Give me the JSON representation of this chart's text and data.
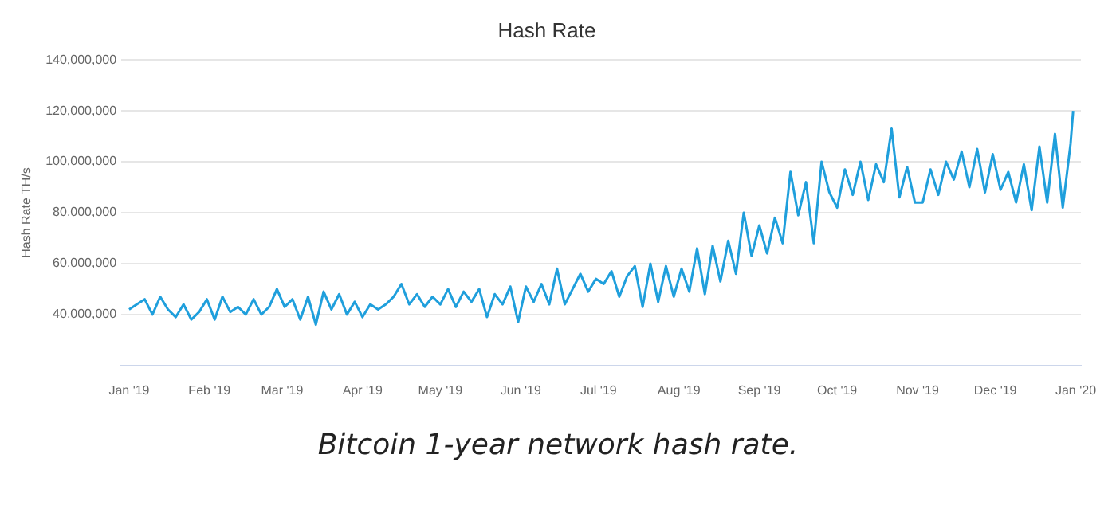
{
  "chart_data": {
    "type": "line",
    "title": "Hash Rate",
    "ylabel": "Hash Rate TH/s",
    "annotations": [
      "Bitcoin 1-year network hash rate."
    ],
    "x": [
      "2019-01-01",
      "2019-01-04",
      "2019-01-07",
      "2019-01-10",
      "2019-01-13",
      "2019-01-16",
      "2019-01-19",
      "2019-01-22",
      "2019-01-25",
      "2019-01-28",
      "2019-01-31",
      "2019-02-03",
      "2019-02-06",
      "2019-02-09",
      "2019-02-12",
      "2019-02-15",
      "2019-02-18",
      "2019-02-21",
      "2019-02-24",
      "2019-02-27",
      "2019-03-02",
      "2019-03-05",
      "2019-03-08",
      "2019-03-11",
      "2019-03-14",
      "2019-03-17",
      "2019-03-20",
      "2019-03-23",
      "2019-03-26",
      "2019-03-29",
      "2019-04-01",
      "2019-04-04",
      "2019-04-07",
      "2019-04-10",
      "2019-04-13",
      "2019-04-16",
      "2019-04-19",
      "2019-04-22",
      "2019-04-25",
      "2019-04-28",
      "2019-05-01",
      "2019-05-04",
      "2019-05-07",
      "2019-05-10",
      "2019-05-13",
      "2019-05-16",
      "2019-05-19",
      "2019-05-22",
      "2019-05-25",
      "2019-05-28",
      "2019-05-31",
      "2019-06-03",
      "2019-06-06",
      "2019-06-09",
      "2019-06-12",
      "2019-06-15",
      "2019-06-18",
      "2019-06-21",
      "2019-06-24",
      "2019-06-27",
      "2019-06-30",
      "2019-07-03",
      "2019-07-06",
      "2019-07-09",
      "2019-07-12",
      "2019-07-15",
      "2019-07-18",
      "2019-07-21",
      "2019-07-24",
      "2019-07-27",
      "2019-07-30",
      "2019-08-02",
      "2019-08-05",
      "2019-08-08",
      "2019-08-11",
      "2019-08-14",
      "2019-08-17",
      "2019-08-20",
      "2019-08-23",
      "2019-08-26",
      "2019-08-29",
      "2019-09-01",
      "2019-09-04",
      "2019-09-07",
      "2019-09-10",
      "2019-09-13",
      "2019-09-16",
      "2019-09-19",
      "2019-09-22",
      "2019-09-25",
      "2019-09-28",
      "2019-10-01",
      "2019-10-04",
      "2019-10-07",
      "2019-10-10",
      "2019-10-13",
      "2019-10-16",
      "2019-10-19",
      "2019-10-22",
      "2019-10-25",
      "2019-10-28",
      "2019-10-31",
      "2019-11-03",
      "2019-11-06",
      "2019-11-09",
      "2019-11-12",
      "2019-11-15",
      "2019-11-18",
      "2019-11-21",
      "2019-11-24",
      "2019-11-27",
      "2019-11-30",
      "2019-12-03",
      "2019-12-06",
      "2019-12-09",
      "2019-12-12",
      "2019-12-15",
      "2019-12-18",
      "2019-12-21",
      "2019-12-24",
      "2019-12-27",
      "2019-12-30",
      "2019-12-31"
    ],
    "series": [
      {
        "color": "#1f9fdc",
        "values": [
          42000000,
          44000000,
          46000000,
          40000000,
          47000000,
          42000000,
          39000000,
          44000000,
          38000000,
          41000000,
          46000000,
          38000000,
          47000000,
          41000000,
          43000000,
          40000000,
          46000000,
          40000000,
          43000000,
          50000000,
          43000000,
          46000000,
          38000000,
          47000000,
          36000000,
          49000000,
          42000000,
          48000000,
          40000000,
          45000000,
          39000000,
          44000000,
          42000000,
          44000000,
          47000000,
          52000000,
          44000000,
          48000000,
          43000000,
          47000000,
          44000000,
          50000000,
          43000000,
          49000000,
          45000000,
          50000000,
          39000000,
          48000000,
          44000000,
          51000000,
          37000000,
          51000000,
          45000000,
          52000000,
          44000000,
          58000000,
          44000000,
          50000000,
          56000000,
          49000000,
          54000000,
          52000000,
          57000000,
          47000000,
          55000000,
          59000000,
          43000000,
          60000000,
          45000000,
          59000000,
          47000000,
          58000000,
          49000000,
          66000000,
          48000000,
          67000000,
          53000000,
          69000000,
          56000000,
          80000000,
          63000000,
          75000000,
          64000000,
          78000000,
          68000000,
          96000000,
          79000000,
          92000000,
          68000000,
          100000000,
          88000000,
          82000000,
          97000000,
          87000000,
          100000000,
          85000000,
          99000000,
          92000000,
          113000000,
          86000000,
          98000000,
          84000000,
          84000000,
          97000000,
          87000000,
          100000000,
          93000000,
          104000000,
          90000000,
          105000000,
          88000000,
          103000000,
          89000000,
          96000000,
          84000000,
          99000000,
          81000000,
          106000000,
          84000000,
          111000000,
          82000000,
          107000000,
          120000000
        ]
      }
    ],
    "xlim": [
      "2018-12-29",
      "2020-01-03"
    ],
    "xticks": [
      {
        "value": "2019-01-01",
        "label": "Jan '19"
      },
      {
        "value": "2019-02-01",
        "label": "Feb '19"
      },
      {
        "value": "2019-03-01",
        "label": "Mar '19"
      },
      {
        "value": "2019-04-01",
        "label": "Apr '19"
      },
      {
        "value": "2019-05-01",
        "label": "May '19"
      },
      {
        "value": "2019-06-01",
        "label": "Jun '19"
      },
      {
        "value": "2019-07-01",
        "label": "Jul '19"
      },
      {
        "value": "2019-08-01",
        "label": "Aug '19"
      },
      {
        "value": "2019-09-01",
        "label": "Sep '19"
      },
      {
        "value": "2019-10-01",
        "label": "Oct '19"
      },
      {
        "value": "2019-11-01",
        "label": "Nov '19"
      },
      {
        "value": "2019-12-01",
        "label": "Dec '19"
      },
      {
        "value": "2020-01-01",
        "label": "Jan '20"
      }
    ],
    "ylim": [
      20000000,
      140000000
    ],
    "yticks": [
      {
        "value": 40000000,
        "label": "40,000,000"
      },
      {
        "value": 60000000,
        "label": "60,000,000"
      },
      {
        "value": 80000000,
        "label": "80,000,000"
      },
      {
        "value": 100000000,
        "label": "100,000,000"
      },
      {
        "value": 120000000,
        "label": "120,000,000"
      },
      {
        "value": 140000000,
        "label": "140,000,000"
      }
    ],
    "grid": "y",
    "legend": false,
    "marker": "none",
    "line_style": "solid"
  }
}
